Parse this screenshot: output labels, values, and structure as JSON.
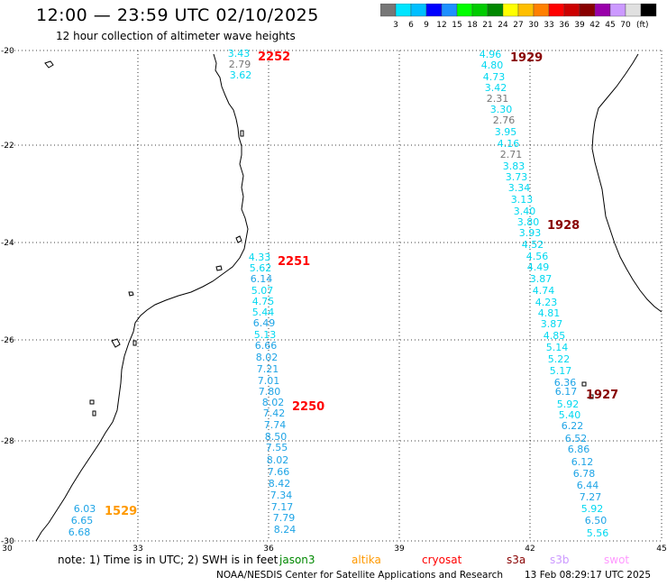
{
  "header": {
    "title": "12:00 — 23:59 UTC 02/10/2025",
    "subtitle": "12 hour collection of altimeter wave heights"
  },
  "colorbar": {
    "unit": "(ft)",
    "colors": [
      "#777777",
      "#00e5ff",
      "#00bfff",
      "#0000ff",
      "#1e90ff",
      "#00ff00",
      "#00cc00",
      "#008800",
      "#ffff00",
      "#ffbf00",
      "#ff8000",
      "#ff0000",
      "#cc0000",
      "#880000",
      "#9900aa",
      "#cc99ff",
      "#e0e0e0",
      "#000000"
    ],
    "labels": [
      "3",
      "6",
      "9",
      "12",
      "15",
      "18",
      "21",
      "24",
      "27",
      "30",
      "33",
      "36",
      "39",
      "42",
      "45",
      "70"
    ]
  },
  "axes": {
    "lon_labels": [
      "30",
      "33",
      "36",
      "39",
      "42",
      "45"
    ],
    "lat_labels": [
      "-20",
      "-22",
      "-24",
      "-26",
      "-28",
      "-30"
    ]
  },
  "passes": [
    {
      "label": "2252",
      "color": "#ff0000",
      "values": [
        "3.43",
        "2.79",
        "3.62"
      ]
    },
    {
      "label": "2251",
      "color": "#ff0000",
      "values": [
        "4.33",
        "5.62",
        "6.14",
        "5.07",
        "4.75",
        "5.44",
        "6.49",
        "5.13",
        "6.66",
        "8.02",
        "7.21",
        "7.01",
        "7.80"
      ]
    },
    {
      "label": "2250",
      "color": "#ff0000",
      "values": [
        "8.02",
        "7.42",
        "7.74",
        "8.50",
        "7.55",
        "8.02",
        "7.66",
        "8.42",
        "7.34",
        "7.17",
        "7.79",
        "8.24"
      ]
    },
    {
      "label": "1529",
      "color": "#ff9900",
      "values": [
        "6.03",
        "6.65",
        "6.68"
      ]
    },
    {
      "label": "1929",
      "color": "#880000",
      "values": [
        "4.96",
        "4.80",
        "4.73",
        "3.42",
        "2.31",
        "3.30",
        "2.76",
        "3.95",
        "4.16",
        "2.71",
        "3.83",
        "3.73",
        "3.34",
        "3.13",
        "3.40"
      ]
    },
    {
      "label": "1928",
      "color": "#880000",
      "values": [
        "3.80",
        "3.93",
        "4.52",
        "4.56",
        "4.49",
        "3.87",
        "4.74",
        "4.23",
        "4.81",
        "3.87",
        "4.85",
        "5.14",
        "5.22",
        "5.17",
        "6.36"
      ]
    },
    {
      "label": "1927",
      "color": "#880000",
      "values": [
        "6.17",
        "5.92",
        "5.40",
        "6.22",
        "6.52",
        "6.86",
        "6.12",
        "6.78",
        "6.44",
        "7.27",
        "5.92",
        "6.50",
        "5.56"
      ]
    }
  ],
  "legend": {
    "note": "note:  1) Time is in UTC; 2) SWH is in feet",
    "missions": [
      {
        "name": "jason3",
        "color": "#008800"
      },
      {
        "name": "altika",
        "color": "#ff9900"
      },
      {
        "name": "cryosat",
        "color": "#ff0000"
      },
      {
        "name": "s3a",
        "color": "#880000"
      },
      {
        "name": "s3b",
        "color": "#cc99ff"
      },
      {
        "name": "swot",
        "color": "#ff99ff"
      }
    ]
  },
  "footer": {
    "credit": "NOAA/NESDIS Center for Satellite Applications and Research",
    "timestamp": "13 Feb 08:29:17 UTC 2025"
  }
}
